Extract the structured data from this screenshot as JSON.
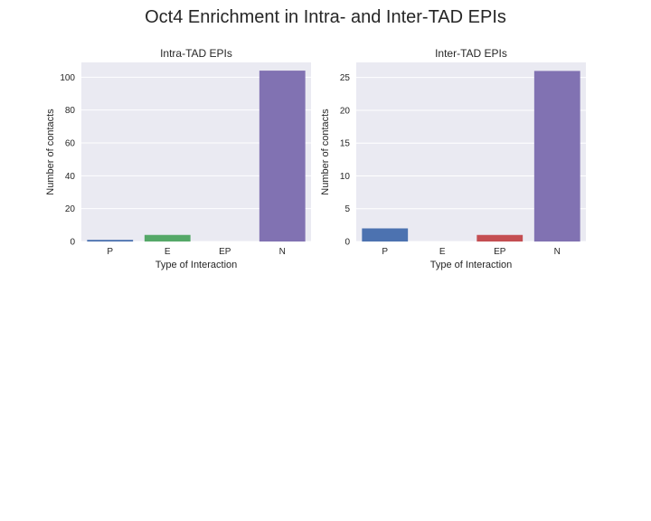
{
  "title": "Oct4 Enrichment in Intra- and Inter-TAD EPIs",
  "colors": {
    "background": "#ffffff",
    "plot_bg": "#eaeaf2",
    "grid": "#ffffff",
    "bars": [
      "#4c72b0",
      "#55a868",
      "#c44e52",
      "#8172b2"
    ]
  },
  "chart_data": [
    {
      "type": "bar",
      "title": "Intra-TAD EPIs",
      "xlabel": "Type of Interaction",
      "ylabel": "Number of contacts",
      "categories": [
        "P",
        "E",
        "EP",
        "N"
      ],
      "values": [
        1,
        4,
        0,
        104
      ],
      "ylim": [
        0,
        109
      ],
      "yticks": [
        0,
        20,
        40,
        60,
        80,
        100
      ],
      "grid": true
    },
    {
      "type": "bar",
      "title": "Inter-TAD EPIs",
      "xlabel": "Type of Interaction",
      "ylabel": "Number of contacts",
      "categories": [
        "P",
        "E",
        "EP",
        "N"
      ],
      "values": [
        2,
        0,
        1,
        26
      ],
      "ylim": [
        0,
        27.3
      ],
      "yticks": [
        0,
        5,
        10,
        15,
        20,
        25
      ],
      "grid": true
    }
  ]
}
